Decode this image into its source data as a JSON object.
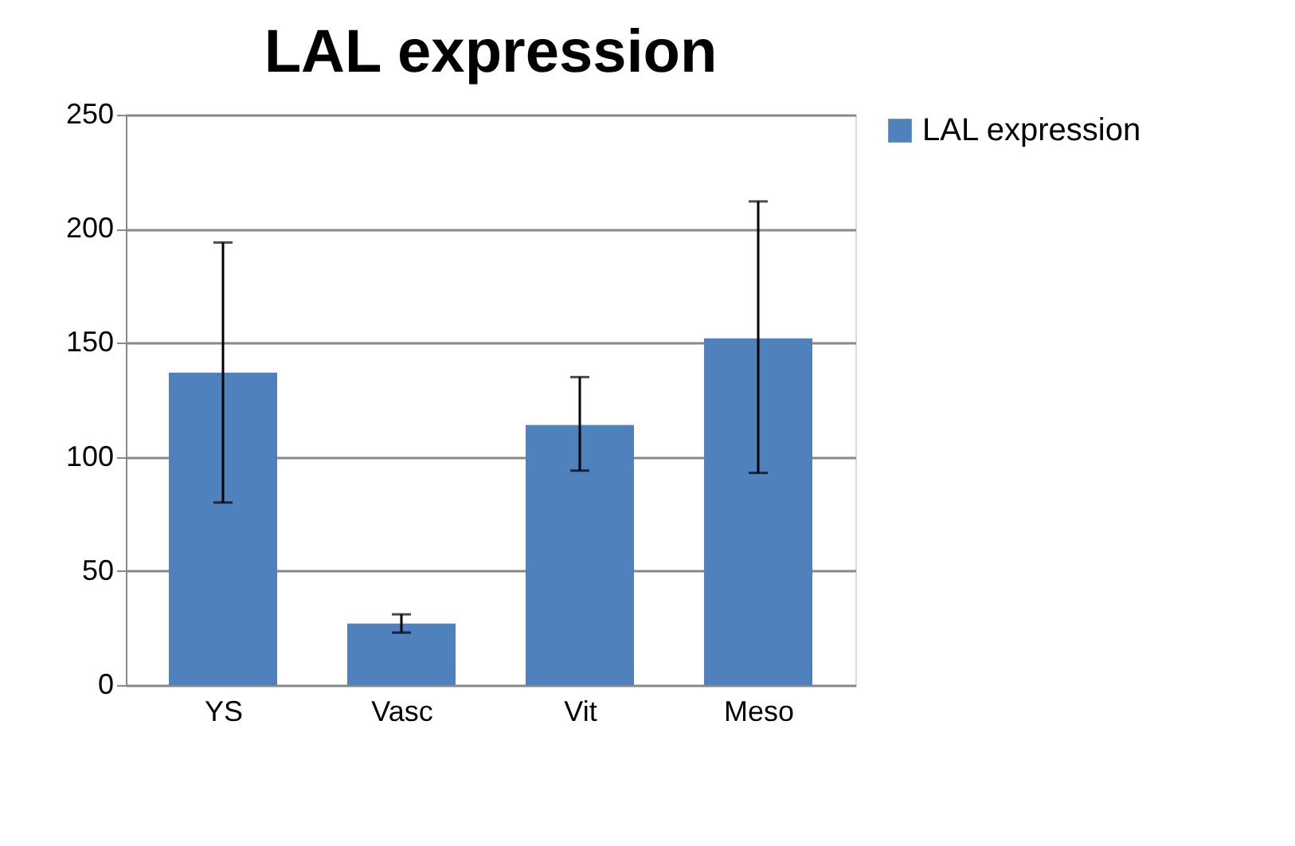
{
  "chart_data": {
    "type": "bar",
    "title": "LAL expression",
    "categories": [
      "YS",
      "Vasc",
      "Vit",
      "Meso"
    ],
    "series": [
      {
        "name": "LAL expression",
        "color": "#4f81bd",
        "values": [
          137,
          27,
          114,
          152
        ],
        "errors": [
          [
            80,
            194
          ],
          [
            23,
            31
          ],
          [
            94,
            135
          ],
          [
            93,
            212
          ]
        ]
      }
    ],
    "ylim": [
      0,
      250
    ],
    "yticks": [
      0,
      50,
      100,
      150,
      200,
      250
    ],
    "grid": "y",
    "legend": "right"
  }
}
